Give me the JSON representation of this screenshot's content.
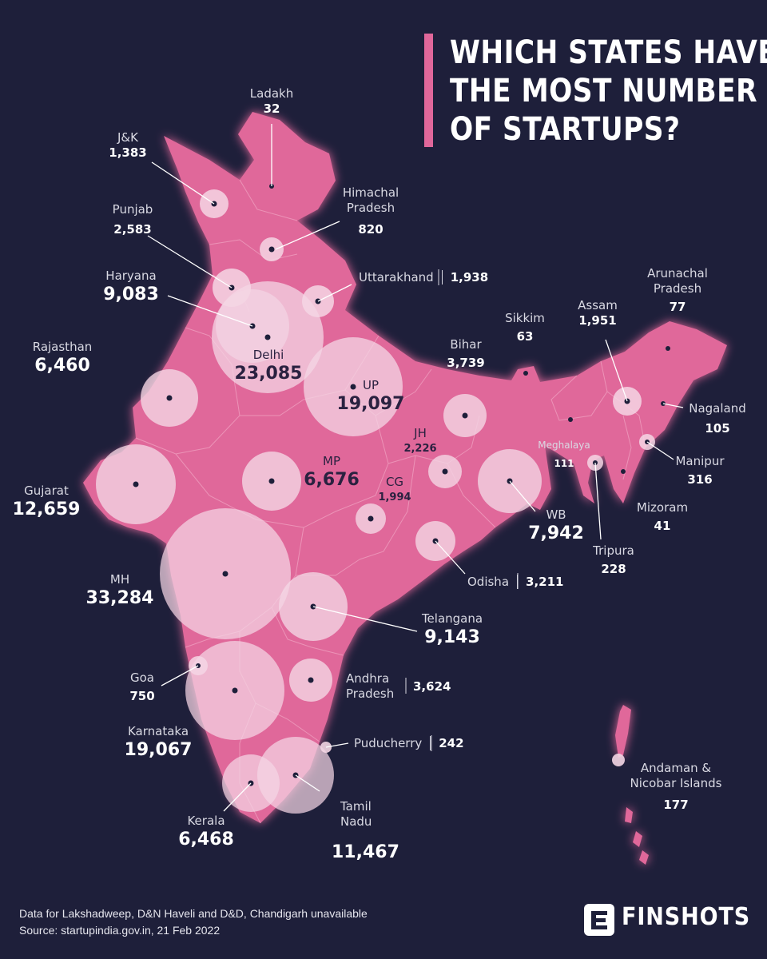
{
  "title_lines": [
    "WHICH STATES HAVE",
    "THE MOST NUMBER",
    "OF STARTUPS?"
  ],
  "colors": {
    "background": "#1e1f3a",
    "map_fill": "#e0679a",
    "bubble": "#f4d6e4",
    "accent": "#e0679a"
  },
  "states": [
    {
      "key": "ladakh",
      "name": "Ladakh",
      "value": "32"
    },
    {
      "key": "jk",
      "name": "J&K",
      "value": "1,383"
    },
    {
      "key": "himachal",
      "name": "Himachal Pradesh",
      "name_lines": [
        "Himachal",
        "Pradesh"
      ],
      "value": "820"
    },
    {
      "key": "punjab",
      "name": "Punjab",
      "value": "2,583"
    },
    {
      "key": "haryana",
      "name": "Haryana",
      "value": "9,083"
    },
    {
      "key": "uttarakhand",
      "name": "Uttarakhand",
      "value": "1,938"
    },
    {
      "key": "delhi",
      "name": "Delhi",
      "value": "23,085"
    },
    {
      "key": "rajasthan",
      "name": "Rajasthan",
      "value": "6,460"
    },
    {
      "key": "up",
      "name": "UP",
      "value": "19,097"
    },
    {
      "key": "bihar",
      "name": "Bihar",
      "value": "3,739"
    },
    {
      "key": "sikkim",
      "name": "Sikkim",
      "value": "63"
    },
    {
      "key": "assam",
      "name": "Assam",
      "value": "1,951"
    },
    {
      "key": "arunachal",
      "name": "Arunachal Pradesh",
      "name_lines": [
        "Arunachal",
        "Pradesh"
      ],
      "value": "77"
    },
    {
      "key": "nagaland",
      "name": "Nagaland",
      "value": "105"
    },
    {
      "key": "meghalaya",
      "name": "Meghalaya",
      "value": "111"
    },
    {
      "key": "manipur",
      "name": "Manipur",
      "value": "316"
    },
    {
      "key": "mizoram",
      "name": "Mizoram",
      "value": "41"
    },
    {
      "key": "tripura",
      "name": "Tripura",
      "value": "228"
    },
    {
      "key": "gujarat",
      "name": "Gujarat",
      "value": "12,659"
    },
    {
      "key": "mp",
      "name": "MP",
      "value": "6,676"
    },
    {
      "key": "jh",
      "name": "JH",
      "value": "2,226"
    },
    {
      "key": "cg",
      "name": "CG",
      "value": "1,994"
    },
    {
      "key": "wb",
      "name": "WB",
      "value": "7,942"
    },
    {
      "key": "odisha",
      "name": "Odisha",
      "value": "3,211"
    },
    {
      "key": "mh",
      "name": "MH",
      "value": "33,284"
    },
    {
      "key": "telangana",
      "name": "Telangana",
      "value": "9,143"
    },
    {
      "key": "goa",
      "name": "Goa",
      "value": "750"
    },
    {
      "key": "andhra",
      "name": "Andhra Pradesh",
      "name_lines": [
        "Andhra",
        "Pradesh"
      ],
      "value": "3,624"
    },
    {
      "key": "karnataka",
      "name": "Karnataka",
      "value": "19,067"
    },
    {
      "key": "puducherry",
      "name": "Puducherry",
      "value": "242"
    },
    {
      "key": "kerala",
      "name": "Kerala",
      "value": "6,468"
    },
    {
      "key": "tamilnadu",
      "name": "Tamil Nadu",
      "name_lines": [
        "Tamil",
        "Nadu"
      ],
      "value": "11,467"
    },
    {
      "key": "andaman",
      "name": "Andaman & Nicobar Islands",
      "name_lines": [
        "Andaman &",
        "Nicobar Islands"
      ],
      "value": "177"
    }
  ],
  "footer": {
    "note": "Data for Lakshadweep, D&N Haveli and D&D, Chandigarh unavailable",
    "source": "Source: startupindia.gov.in, 21 Feb 2022"
  },
  "brand": {
    "name": "FINSHOTS",
    "icon": "finshots-logo-icon"
  }
}
